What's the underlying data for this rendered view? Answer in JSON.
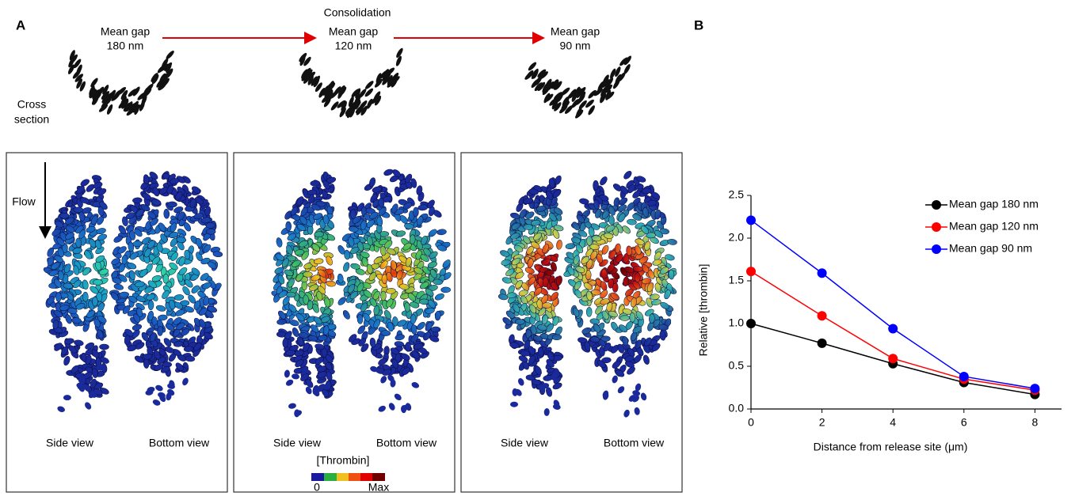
{
  "panel_a": {
    "label": "A",
    "consolidation": "Consolidation",
    "stages": [
      {
        "gap_label": "Mean gap",
        "gap_value": "180 nm"
      },
      {
        "gap_label": "Mean gap",
        "gap_value": "120 nm"
      },
      {
        "gap_label": "Mean gap",
        "gap_value": "90 nm"
      }
    ],
    "cross_section": [
      "Cross",
      "section"
    ],
    "flow": "Flow",
    "panels": [
      {
        "side_view": "Side view",
        "bottom_view": "Bottom view"
      },
      {
        "side_view": "Side view",
        "bottom_view": "Bottom view"
      },
      {
        "side_view": "Side view",
        "bottom_view": "Bottom view"
      }
    ],
    "colorbar": {
      "title": "[Thrombin]",
      "min_label": "0",
      "max_label": "Max"
    }
  },
  "panel_b": {
    "label": "B"
  },
  "chart_data": {
    "type": "line",
    "x_label": "Distance from release site (μm)",
    "y_label": "Relative [thrombin]",
    "x": [
      0,
      2,
      4,
      6,
      8
    ],
    "series": [
      {
        "name": "Mean gap 180 nm",
        "color": "#000000",
        "values": [
          1.0,
          0.77,
          0.53,
          0.31,
          0.17
        ]
      },
      {
        "name": "Mean gap 120 nm",
        "color": "#ff0000",
        "values": [
          1.61,
          1.09,
          0.59,
          0.35,
          0.22
        ]
      },
      {
        "name": "Mean gap 90 nm",
        "color": "#0000ff",
        "values": [
          2.21,
          1.59,
          0.94,
          0.38,
          0.24
        ]
      }
    ],
    "xlim": [
      0,
      8.75
    ],
    "ylim": [
      0,
      2.5
    ],
    "xticks": [
      0,
      2,
      4,
      6,
      8
    ],
    "yticks": [
      {
        "value": 0,
        "label": "0.0"
      },
      {
        "value": 0.5,
        "label": "0.5"
      },
      {
        "value": 1,
        "label": "1.0"
      },
      {
        "value": 1.5,
        "label": "1.5"
      },
      {
        "value": 2,
        "label": "2.0"
      },
      {
        "value": 2.5,
        "label": "2.5"
      }
    ],
    "legend": "upper right",
    "grid": false
  }
}
